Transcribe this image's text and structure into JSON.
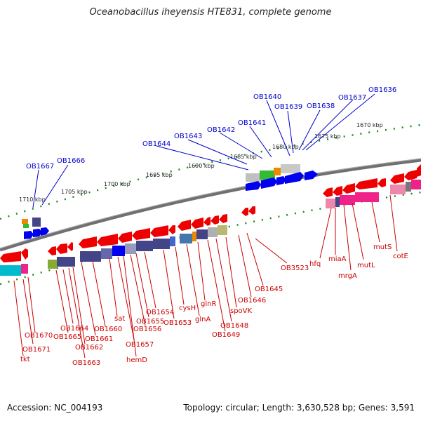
{
  "title": "Oceanobacillus iheyensis HTE831, complete genome",
  "footer": {
    "accession": "Accession: NC_004193",
    "topology": "Topology: circular; Length: 3,630,528 bp; Genes: 3,591"
  },
  "scale_labels": [
    "1670 kbp",
    "1675 kbp",
    "1680 kbp",
    "1685 kbp",
    "1690 kbp",
    "1695 kbp",
    "1700 kbp",
    "1705 kbp",
    "1710 kbp"
  ],
  "top_gene_labels": [
    "OB1636",
    "OB1637",
    "OB1638",
    "OB1639",
    "OB1640",
    "OB1641",
    "OB1642",
    "OB1643",
    "OB1644",
    "OB1666",
    "OB1667"
  ],
  "bottom_gene_labels": [
    "tkt",
    "OB1671",
    "OB1670",
    "OB1665",
    "OB1664",
    "OB1663",
    "OB1662",
    "OB1661",
    "OB1660",
    "sat",
    "OB1657",
    "hemD",
    "OB1656",
    "OB1655",
    "OB1654",
    "OB1653",
    "cysH",
    "glnA",
    "glnR",
    "OB1649",
    "OB1648",
    "spoVK",
    "OB1646",
    "OB1645",
    "OB3523",
    "hfq",
    "miaA",
    "mrgA",
    "mutL",
    "mutS",
    "cotE"
  ],
  "colors": {
    "top_label": "#0000cc",
    "bottom_label": "#cc0000",
    "backbone": "#707070",
    "scale_tick": "#1a8a1a"
  }
}
